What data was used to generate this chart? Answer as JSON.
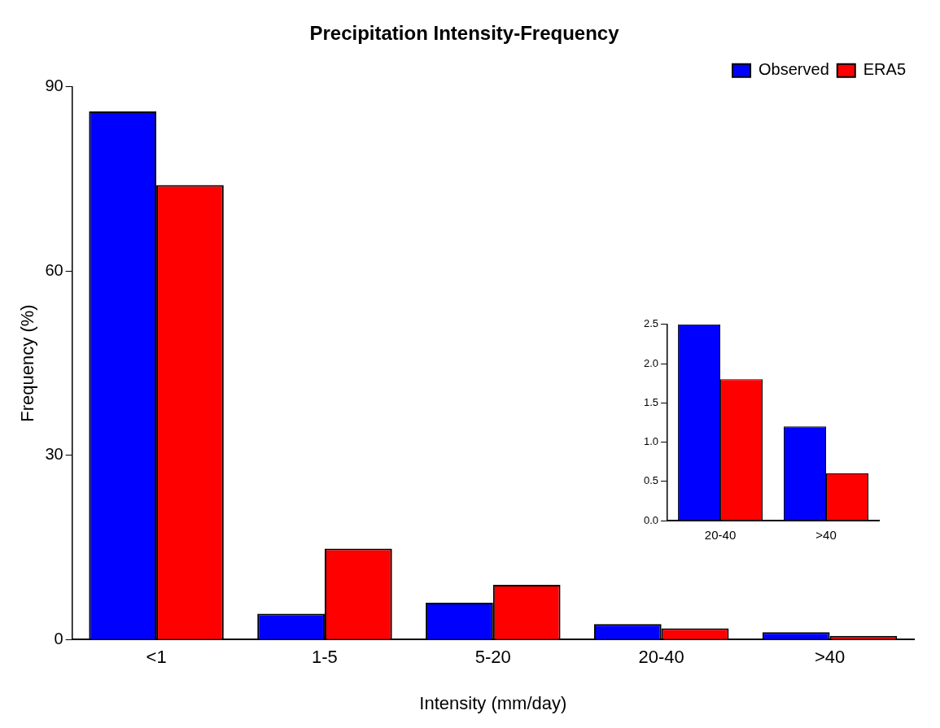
{
  "chart_data": [
    {
      "type": "bar",
      "title": "Precipitation Intensity-Frequency",
      "xlabel": "Intensity (mm/day)",
      "ylabel": "Frequency (%)",
      "categories": [
        "<1",
        "1-5",
        "5-20",
        "20-40",
        ">40"
      ],
      "series": [
        {
          "name": "Observed",
          "color": "#0000ff",
          "values": [
            86,
            4.2,
            6.0,
            2.5,
            1.2
          ]
        },
        {
          "name": "ERA5",
          "color": "#ff0000",
          "values": [
            74,
            14.8,
            8.9,
            1.8,
            0.6
          ]
        }
      ],
      "ylim": [
        0,
        90
      ],
      "yticks": [
        0,
        30,
        60,
        90
      ],
      "grid": false,
      "legend": "top right"
    },
    {
      "type": "bar",
      "categories": [
        "20-40",
        ">40"
      ],
      "series": [
        {
          "color": "#0000ff",
          "values": [
            2.5,
            1.2
          ]
        },
        {
          "color": "#ff0000",
          "values": [
            1.8,
            0.6
          ]
        }
      ],
      "ylim": [
        0,
        2.5
      ],
      "yticks": [
        {
          "value": 0,
          "label": "0.0"
        },
        {
          "value": 0.5,
          "label": "0.5"
        },
        {
          "value": 1,
          "label": "1.0"
        },
        {
          "value": 1.5,
          "label": "1.5"
        },
        {
          "value": 2,
          "label": "2.0"
        },
        {
          "value": 2.5,
          "label": "2.5"
        }
      ],
      "grid": false
    }
  ]
}
